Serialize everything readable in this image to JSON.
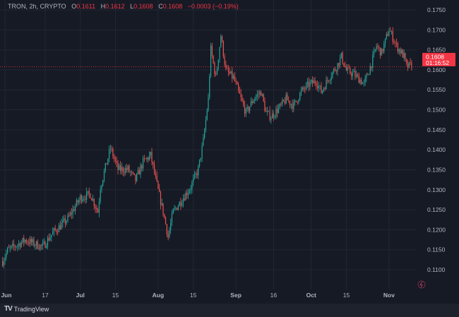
{
  "header": {
    "symbol": "TRON, 2h, CRYPTO",
    "open_label": "O",
    "open": "0.1611",
    "high_label": "H",
    "high": "0.1612",
    "low_label": "L",
    "low": "0.1608",
    "close_label": "C",
    "close": "0.1608",
    "change": "−0.0003 (−0.19%)"
  },
  "price_label": {
    "price": "0.1608",
    "countdown": "01:16:52"
  },
  "footer": {
    "brand": "TradingView"
  },
  "colors": {
    "up": "#26a69a",
    "down": "#ef5350",
    "price_line": "#f23645",
    "background": "#161a25",
    "text": "#b2b5be"
  },
  "chart_data": {
    "type": "candlestick",
    "title": "TRON, 2h, CRYPTO",
    "ylim": [
      0.1075,
      0.1775
    ],
    "y_ticks": [
      "0.1750",
      "0.1700",
      "0.1650",
      "0.1600",
      "0.1550",
      "0.1500",
      "0.1450",
      "0.1400",
      "0.1350",
      "0.1300",
      "0.1250",
      "0.1200",
      "0.1150",
      "0.1100"
    ],
    "x_ticks": [
      {
        "date": "2024-06-01",
        "label": "Jun"
      },
      {
        "date": "2024-06-17",
        "label": "17"
      },
      {
        "date": "2024-07-01",
        "label": "Jul"
      },
      {
        "date": "2024-07-15",
        "label": "15"
      },
      {
        "date": "2024-08-01",
        "label": "Aug"
      },
      {
        "date": "2024-08-15",
        "label": "15"
      },
      {
        "date": "2024-09-01",
        "label": "Sep"
      },
      {
        "date": "2024-09-16",
        "label": "16"
      },
      {
        "date": "2024-10-01",
        "label": "Oct"
      },
      {
        "date": "2024-10-15",
        "label": "15"
      },
      {
        "date": "2024-11-01",
        "label": "Nov"
      }
    ],
    "xlim": [
      "2024-05-30",
      "2024-11-12"
    ],
    "grid": true,
    "last_price": 0.1608,
    "close_path": [
      [
        "2024-05-31",
        0.1121
      ],
      [
        "2024-06-02",
        0.1148
      ],
      [
        "2024-06-09",
        0.1174
      ],
      [
        "2024-06-16",
        0.1157
      ],
      [
        "2024-06-20",
        0.1192
      ],
      [
        "2024-06-26",
        0.1227
      ],
      [
        "2024-07-01",
        0.128
      ],
      [
        "2024-07-05",
        0.1289
      ],
      [
        "2024-07-08",
        0.1245
      ],
      [
        "2024-07-09",
        0.1307
      ],
      [
        "2024-07-13",
        0.1404
      ],
      [
        "2024-07-16",
        0.1351
      ],
      [
        "2024-07-20",
        0.1351
      ],
      [
        "2024-07-23",
        0.1324
      ],
      [
        "2024-07-26",
        0.1369
      ],
      [
        "2024-07-29",
        0.1386
      ],
      [
        "2024-08-01",
        0.1298
      ],
      [
        "2024-08-03",
        0.1245
      ],
      [
        "2024-08-05",
        0.1183
      ],
      [
        "2024-08-07",
        0.1245
      ],
      [
        "2024-08-10",
        0.1271
      ],
      [
        "2024-08-14",
        0.1307
      ],
      [
        "2024-08-17",
        0.1351
      ],
      [
        "2024-08-19",
        0.1422
      ],
      [
        "2024-08-21",
        0.1527
      ],
      [
        "2024-08-22",
        0.1651
      ],
      [
        "2024-08-24",
        0.158
      ],
      [
        "2024-08-26",
        0.1686
      ],
      [
        "2024-08-28",
        0.1598
      ],
      [
        "2024-08-31",
        0.158
      ],
      [
        "2024-09-03",
        0.1527
      ],
      [
        "2024-09-05",
        0.1492
      ],
      [
        "2024-09-08",
        0.1527
      ],
      [
        "2024-09-11",
        0.1545
      ],
      [
        "2024-09-13",
        0.1492
      ],
      [
        "2024-09-15",
        0.1483
      ],
      [
        "2024-09-19",
        0.151
      ],
      [
        "2024-09-21",
        0.1527
      ],
      [
        "2024-09-24",
        0.151
      ],
      [
        "2024-09-27",
        0.1545
      ],
      [
        "2024-09-30",
        0.1563
      ],
      [
        "2024-10-03",
        0.1572
      ],
      [
        "2024-10-05",
        0.1545
      ],
      [
        "2024-10-08",
        0.158
      ],
      [
        "2024-10-11",
        0.1607
      ],
      [
        "2024-10-13",
        0.1633
      ],
      [
        "2024-10-15",
        0.1598
      ],
      [
        "2024-10-18",
        0.1589
      ],
      [
        "2024-10-21",
        0.1572
      ],
      [
        "2024-10-22",
        0.1563
      ],
      [
        "2024-10-25",
        0.1616
      ],
      [
        "2024-10-27",
        0.166
      ],
      [
        "2024-10-29",
        0.1642
      ],
      [
        "2024-11-01",
        0.1701
      ],
      [
        "2024-11-04",
        0.166
      ],
      [
        "2024-11-07",
        0.1633
      ],
      [
        "2024-11-08",
        0.1607
      ],
      [
        "2024-11-10",
        0.1612
      ]
    ]
  }
}
